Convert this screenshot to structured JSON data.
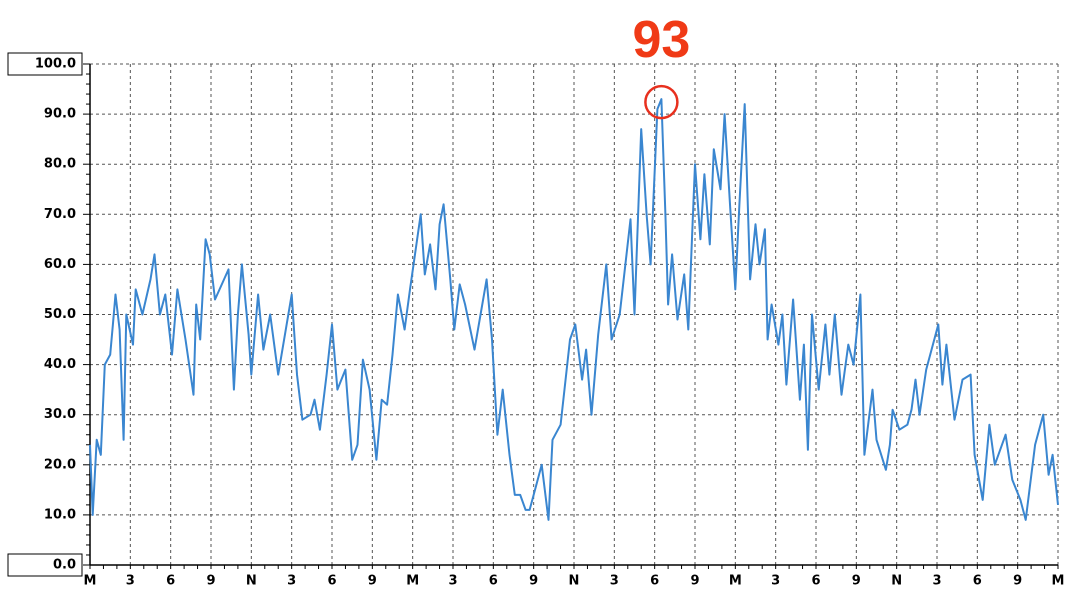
{
  "chart_data": {
    "type": "line",
    "annotation": "93",
    "xlim": [
      0,
      72
    ],
    "xticks": [
      {
        "value": 0,
        "label": "M"
      },
      {
        "value": 3,
        "label": "3"
      },
      {
        "value": 6,
        "label": "6"
      },
      {
        "value": 9,
        "label": "9"
      },
      {
        "value": 12,
        "label": "N"
      },
      {
        "value": 15,
        "label": "3"
      },
      {
        "value": 18,
        "label": "6"
      },
      {
        "value": 21,
        "label": "9"
      },
      {
        "value": 24,
        "label": "M"
      },
      {
        "value": 27,
        "label": "3"
      },
      {
        "value": 30,
        "label": "6"
      },
      {
        "value": 33,
        "label": "9"
      },
      {
        "value": 36,
        "label": "N"
      },
      {
        "value": 39,
        "label": "3"
      },
      {
        "value": 42,
        "label": "6"
      },
      {
        "value": 45,
        "label": "9"
      },
      {
        "value": 48,
        "label": "M"
      },
      {
        "value": 51,
        "label": "3"
      },
      {
        "value": 54,
        "label": "6"
      },
      {
        "value": 57,
        "label": "9"
      },
      {
        "value": 60,
        "label": "N"
      },
      {
        "value": 63,
        "label": "3"
      },
      {
        "value": 66,
        "label": "6"
      },
      {
        "value": 69,
        "label": "9"
      },
      {
        "value": 72,
        "label": "M"
      }
    ],
    "ylim": [
      0,
      100
    ],
    "yticks": [
      {
        "value": 0,
        "label": "0.0"
      },
      {
        "value": 10,
        "label": "10.0"
      },
      {
        "value": 20,
        "label": "20.0"
      },
      {
        "value": 30,
        "label": "30.0"
      },
      {
        "value": 40,
        "label": "40.0"
      },
      {
        "value": 50,
        "label": "50.0"
      },
      {
        "value": 60,
        "label": "60.0"
      },
      {
        "value": 70,
        "label": "70.0"
      },
      {
        "value": 80,
        "label": "80.0"
      },
      {
        "value": 90,
        "label": "90.0"
      },
      {
        "value": 100,
        "label": "100.0"
      }
    ],
    "grid": true,
    "color": "#3a86d0",
    "x": [
      0,
      0.2,
      0.5,
      0.8,
      1.1,
      1.5,
      1.7,
      1.9,
      2.2,
      2.5,
      2.7,
      3.2,
      3.4,
      3.9,
      4.5,
      4.8,
      5.2,
      5.6,
      6.1,
      6.5,
      7.1,
      7.7,
      7.9,
      8.2,
      8.6,
      8.9,
      9.3,
      9.8,
      10.3,
      10.7,
      11.0,
      11.3,
      11.8,
      12.0,
      12.5,
      12.9,
      13.4,
      14.0,
      15.0,
      15.4,
      15.8,
      16.4,
      16.7,
      17.1,
      17.6,
      18.0,
      18.4,
      19.0,
      19.5,
      19.9,
      20.3,
      20.8,
      21.3,
      21.7,
      22.1,
      22.5,
      22.9,
      23.4,
      23.8,
      24.6,
      24.9,
      25.3,
      25.7,
      26.0,
      26.3,
      26.8,
      27.1,
      27.5,
      27.9,
      28.6,
      29.5,
      29.9,
      30.3,
      30.7,
      31.2,
      31.6,
      32.0,
      32.4,
      32.7,
      33.1,
      33.6,
      34.1,
      34.4,
      35.0,
      35.7,
      36.1,
      36.6,
      36.9,
      37.3,
      37.8,
      38.4,
      38.8,
      39.4,
      40.2,
      40.5,
      41.0,
      41.4,
      41.7,
      42.2,
      42.5,
      42.8,
      43.0,
      43.3,
      43.7,
      44.2,
      44.5,
      45.0,
      45.4,
      45.7,
      46.1,
      46.4,
      46.9,
      47.2,
      47.6,
      48.0,
      48.3,
      48.7,
      49.1,
      49.5,
      49.8,
      50.2,
      50.4,
      50.7,
      51.2,
      51.5,
      51.8,
      52.3,
      52.8,
      53.1,
      53.4,
      53.7,
      54.2,
      54.7,
      55.0,
      55.4,
      55.9,
      56.4,
      56.8,
      57.3,
      57.6,
      58.2,
      58.5,
      59.2,
      59.5,
      59.7,
      60.2,
      60.8,
      61.1,
      61.4,
      61.7,
      62.2,
      63.1,
      63.4,
      63.7,
      64.3,
      64.9,
      65.5,
      65.8,
      66.4,
      66.9,
      67.3,
      68.1,
      68.6,
      69.2,
      69.6,
      70.3,
      70.9,
      71.3,
      71.6,
      72
    ],
    "values": [
      24,
      10,
      25,
      22,
      40,
      42,
      48,
      54,
      47,
      25,
      50,
      44,
      55,
      50,
      57,
      62,
      50,
      54,
      42,
      55,
      45,
      34,
      52,
      45,
      65,
      62,
      53,
      56,
      59,
      35,
      50,
      60,
      46,
      38,
      54,
      43,
      50,
      38,
      54,
      38,
      29,
      30,
      33,
      27,
      38,
      48,
      35,
      39,
      21,
      24,
      41,
      35,
      21,
      33,
      32,
      42,
      54,
      47,
      55,
      70,
      58,
      64,
      55,
      68,
      72,
      57,
      47,
      56,
      52,
      43,
      57,
      45,
      26,
      35,
      22,
      14,
      14,
      11,
      11,
      15,
      20,
      9,
      25,
      28,
      45,
      48,
      37,
      43,
      30,
      46,
      60,
      45,
      50,
      69,
      50,
      87,
      70,
      60,
      91,
      93,
      70,
      52,
      62,
      49,
      58,
      47,
      80,
      65,
      78,
      64,
      83,
      75,
      90,
      72,
      55,
      72,
      92,
      57,
      68,
      60,
      67,
      45,
      52,
      44,
      50,
      36,
      53,
      33,
      44,
      23,
      50,
      35,
      48,
      38,
      50,
      34,
      44,
      40,
      54,
      22,
      35,
      25,
      19,
      24,
      31,
      27,
      28,
      31,
      37,
      30,
      39,
      48,
      36,
      44,
      29,
      37,
      38,
      22,
      13,
      28,
      20,
      26,
      17,
      13,
      9,
      24,
      30,
      18,
      22,
      12
    ]
  }
}
